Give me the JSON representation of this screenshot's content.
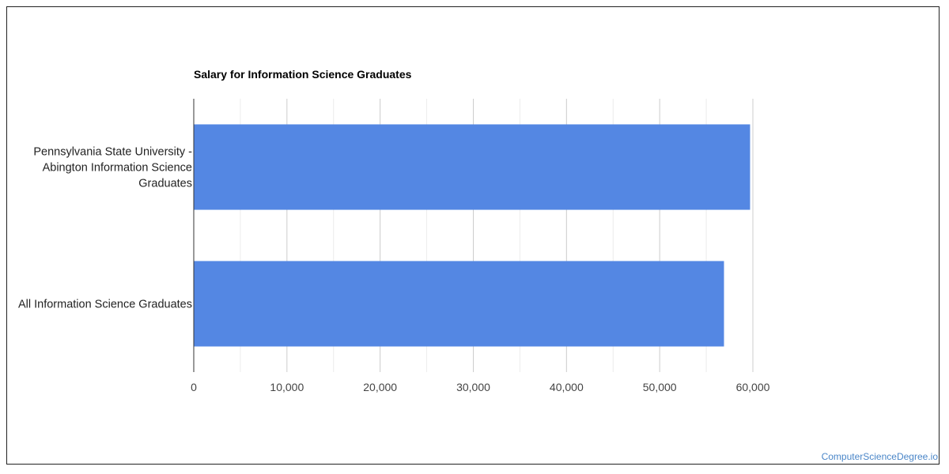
{
  "chart_data": {
    "type": "bar",
    "orientation": "horizontal",
    "title": "Salary for Information Science Graduates",
    "categories": [
      [
        "Pennsylvania State University -",
        "Abington Information Science",
        "Graduates"
      ],
      [
        "All Information Science Graduates"
      ]
    ],
    "values": [
      59700,
      56900
    ],
    "xlim": [
      0,
      60000
    ],
    "x_ticks": [
      0,
      10000,
      20000,
      30000,
      40000,
      50000,
      60000
    ],
    "x_tick_labels": [
      "0",
      "10,000",
      "20,000",
      "30,000",
      "40,000",
      "50,000",
      "60,000"
    ],
    "xlabel": "",
    "ylabel": "",
    "grid": true,
    "bar_color": "#5487e3",
    "major_grid_color": "#cccccc",
    "minor_grid_color": "#ececec"
  },
  "footer": {
    "source_link": "ComputerScienceDegree.io"
  }
}
